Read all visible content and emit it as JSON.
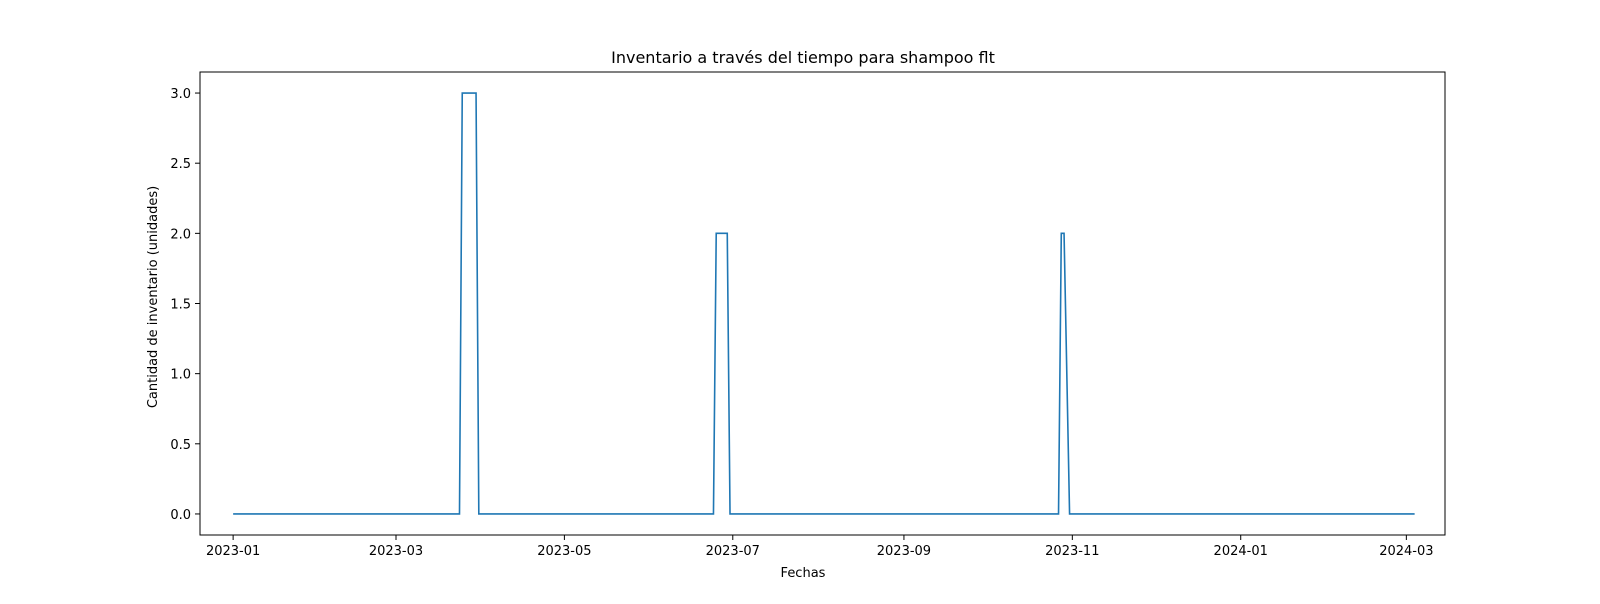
{
  "chart_data": {
    "type": "line",
    "title": "Inventario a través del tiempo para shampoo flt",
    "xlabel": "Fechas",
    "ylabel": "Cantidad de inventario (unidades)",
    "xlim": [
      "2022-12-20",
      "2024-03-15"
    ],
    "ylim": [
      -0.15,
      3.15
    ],
    "x_ticks": [
      "2023-01-01",
      "2023-03-01",
      "2023-05-01",
      "2023-07-01",
      "2023-09-01",
      "2023-11-01",
      "2024-01-01",
      "2024-03-01"
    ],
    "x_tick_labels": [
      "2023-01",
      "2023-03",
      "2023-05",
      "2023-07",
      "2023-09",
      "2023-11",
      "2024-01",
      "2024-03"
    ],
    "y_ticks": [
      0.0,
      0.5,
      1.0,
      1.5,
      2.0,
      2.5,
      3.0
    ],
    "y_tick_labels": [
      "0.0",
      "0.5",
      "1.0",
      "1.5",
      "2.0",
      "2.5",
      "3.0"
    ],
    "grid": false,
    "series": [
      {
        "color": "#1f77b4",
        "x": [
          "2023-01-01",
          "2023-03-24",
          "2023-03-25",
          "2023-03-30",
          "2023-03-31",
          "2023-06-24",
          "2023-06-25",
          "2023-06-29",
          "2023-06-30",
          "2023-10-27",
          "2023-10-28",
          "2023-10-29",
          "2023-10-31",
          "2024-03-04"
        ],
        "y": [
          0,
          0,
          3,
          3,
          0,
          0,
          2,
          2,
          0,
          0,
          2,
          2,
          0,
          0
        ]
      }
    ]
  }
}
